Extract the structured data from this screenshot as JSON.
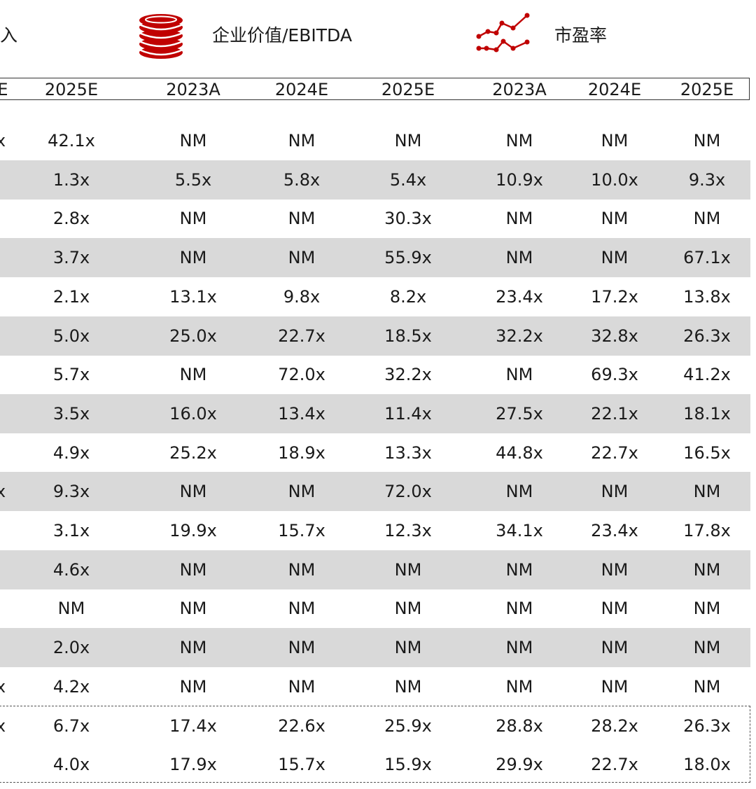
{
  "legend": {
    "revenue_label": "入",
    "ebitda_label": "企业价值/EBITDA",
    "pe_label": "市盈率",
    "accent_color": "#c00000"
  },
  "header": {
    "partial_label": "E",
    "years": [
      "2025E",
      "2023A",
      "2024E",
      "2025E",
      "2023A",
      "2024E",
      "2025E"
    ]
  },
  "rows": [
    {
      "partial": "x",
      "cells": [
        "42.1x",
        "NM",
        "NM",
        "NM",
        "NM",
        "NM",
        "NM"
      ]
    },
    {
      "partial": "",
      "cells": [
        "1.3x",
        "5.5x",
        "5.8x",
        "5.4x",
        "10.9x",
        "10.0x",
        "9.3x"
      ]
    },
    {
      "partial": "",
      "cells": [
        "2.8x",
        "NM",
        "NM",
        "30.3x",
        "NM",
        "NM",
        "NM"
      ]
    },
    {
      "partial": "",
      "cells": [
        "3.7x",
        "NM",
        "NM",
        "55.9x",
        "NM",
        "NM",
        "67.1x"
      ]
    },
    {
      "partial": "",
      "cells": [
        "2.1x",
        "13.1x",
        "9.8x",
        "8.2x",
        "23.4x",
        "17.2x",
        "13.8x"
      ]
    },
    {
      "partial": "",
      "cells": [
        "5.0x",
        "25.0x",
        "22.7x",
        "18.5x",
        "32.2x",
        "32.8x",
        "26.3x"
      ]
    },
    {
      "partial": "",
      "cells": [
        "5.7x",
        "NM",
        "72.0x",
        "32.2x",
        "NM",
        "69.3x",
        "41.2x"
      ]
    },
    {
      "partial": "",
      "cells": [
        "3.5x",
        "16.0x",
        "13.4x",
        "11.4x",
        "27.5x",
        "22.1x",
        "18.1x"
      ]
    },
    {
      "partial": "",
      "cells": [
        "4.9x",
        "25.2x",
        "18.9x",
        "13.3x",
        "44.8x",
        "22.7x",
        "16.5x"
      ]
    },
    {
      "partial": "x",
      "cells": [
        "9.3x",
        "NM",
        "NM",
        "72.0x",
        "NM",
        "NM",
        "NM"
      ]
    },
    {
      "partial": "",
      "cells": [
        "3.1x",
        "19.9x",
        "15.7x",
        "12.3x",
        "34.1x",
        "23.4x",
        "17.8x"
      ]
    },
    {
      "partial": "",
      "cells": [
        "4.6x",
        "NM",
        "NM",
        "NM",
        "NM",
        "NM",
        "NM"
      ]
    },
    {
      "partial": "",
      "cells": [
        "NM",
        "NM",
        "NM",
        "NM",
        "NM",
        "NM",
        "NM"
      ]
    },
    {
      "partial": "",
      "cells": [
        "2.0x",
        "NM",
        "NM",
        "NM",
        "NM",
        "NM",
        "NM"
      ]
    },
    {
      "partial": "x",
      "cells": [
        "4.2x",
        "NM",
        "NM",
        "NM",
        "NM",
        "NM",
        "NM"
      ]
    }
  ],
  "summary_rows": [
    {
      "partial": "x",
      "cells": [
        "6.7x",
        "17.4x",
        "22.6x",
        "25.9x",
        "28.8x",
        "28.2x",
        "26.3x"
      ]
    },
    {
      "partial": "",
      "cells": [
        "4.0x",
        "17.9x",
        "15.7x",
        "15.9x",
        "29.9x",
        "22.7x",
        "18.0x"
      ]
    }
  ]
}
